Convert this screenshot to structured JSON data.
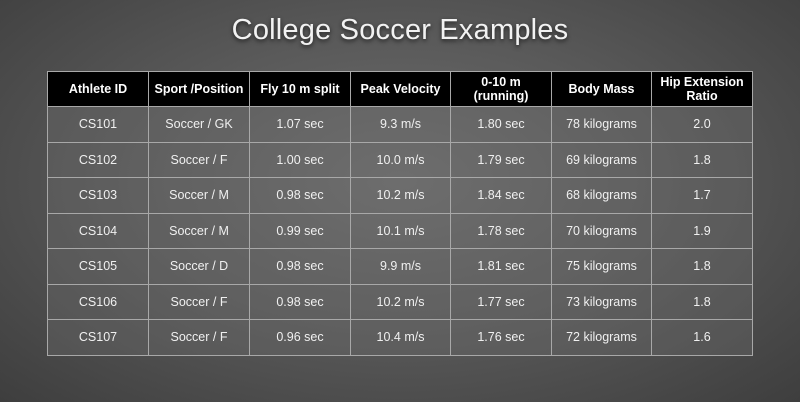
{
  "title": "College Soccer Examples",
  "table": {
    "headers": [
      {
        "key": "athlete_id",
        "lines": [
          "Athlete ID"
        ]
      },
      {
        "key": "sport_position",
        "lines": [
          "Sport /Position"
        ]
      },
      {
        "key": "fly_10m",
        "lines": [
          "Fly 10 m split"
        ]
      },
      {
        "key": "peak_velocity",
        "lines": [
          "Peak Velocity"
        ]
      },
      {
        "key": "zero_ten",
        "lines": [
          "0-10 m",
          "(running)"
        ]
      },
      {
        "key": "body_mass",
        "lines": [
          "Body Mass"
        ]
      },
      {
        "key": "hip_extension",
        "lines": [
          "Hip Extension",
          "Ratio"
        ]
      }
    ],
    "rows": [
      [
        "CS101",
        "Soccer / GK",
        "1.07 sec",
        "9.3 m/s",
        "1.80 sec",
        "78 kilograms",
        "2.0"
      ],
      [
        "CS102",
        "Soccer / F",
        "1.00 sec",
        "10.0 m/s",
        "1.79 sec",
        "69 kilograms",
        "1.8"
      ],
      [
        "CS103",
        "Soccer / M",
        "0.98 sec",
        "10.2 m/s",
        "1.84 sec",
        "68 kilograms",
        "1.7"
      ],
      [
        "CS104",
        "Soccer / M",
        "0.99 sec",
        "10.1 m/s",
        "1.78 sec",
        "70 kilograms",
        "1.9"
      ],
      [
        "CS105",
        "Soccer / D",
        "0.98 sec",
        "9.9 m/s",
        "1.81 sec",
        "75 kilograms",
        "1.8"
      ],
      [
        "CS106",
        "Soccer / F",
        "0.98 sec",
        "10.2 m/s",
        "1.77 sec",
        "73 kilograms",
        "1.8"
      ],
      [
        "CS107",
        "Soccer / F",
        "0.96 sec",
        "10.4 m/s",
        "1.76 sec",
        "72 kilograms",
        "1.6"
      ]
    ]
  },
  "colors": {
    "header_bg": "#000000",
    "header_text": "#ffffff",
    "cell_text": "#f0f0f0",
    "border": "#a8a8a8",
    "title_text": "#f2f2f2"
  }
}
